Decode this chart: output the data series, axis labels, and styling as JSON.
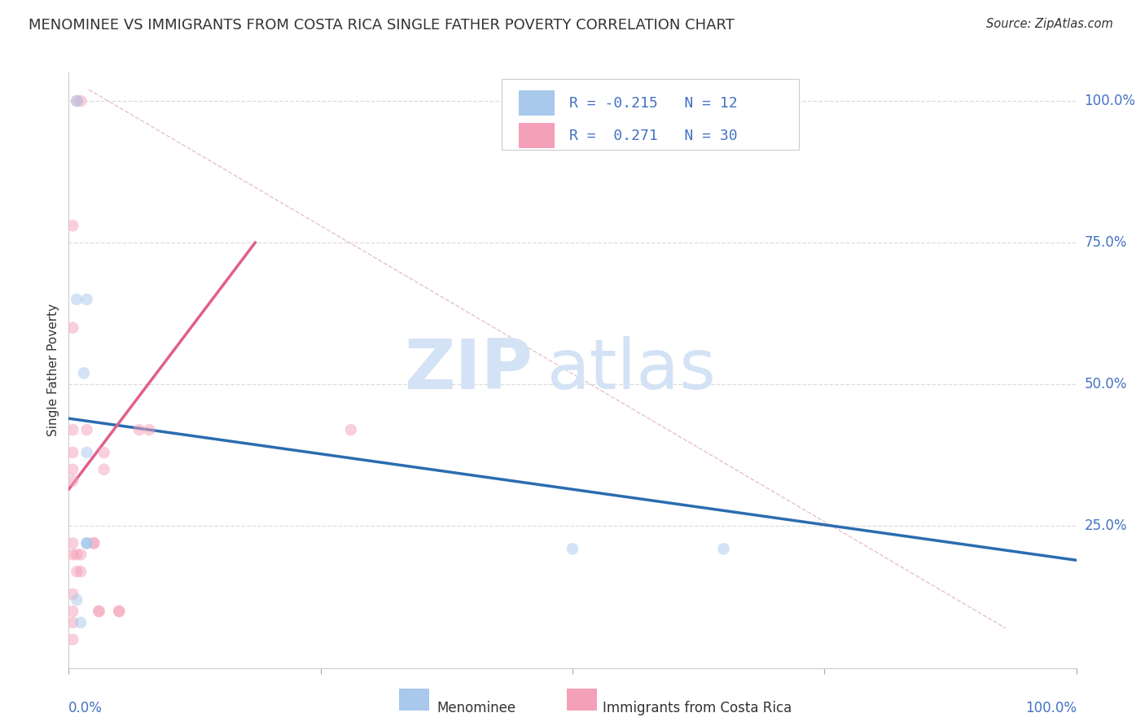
{
  "title": "MENOMINEE VS IMMIGRANTS FROM COSTA RICA SINGLE FATHER POVERTY CORRELATION CHART",
  "source": "Source: ZipAtlas.com",
  "ylabel": "Single Father Poverty",
  "ylabel_right_labels": [
    "100.0%",
    "75.0%",
    "50.0%",
    "25.0%"
  ],
  "ylabel_right_positions": [
    1.0,
    0.75,
    0.5,
    0.25
  ],
  "watermark_top": "ZIP",
  "watermark_bot": "atlas",
  "legend": {
    "blue_r": -0.215,
    "blue_n": 12,
    "pink_r": 0.271,
    "pink_n": 30
  },
  "blue_scatter_x": [
    0.008,
    0.018,
    0.008,
    0.015,
    0.018,
    0.018,
    0.018,
    0.5,
    0.65,
    0.018,
    0.008,
    0.012
  ],
  "blue_scatter_y": [
    1.0,
    0.65,
    0.65,
    0.52,
    0.38,
    0.22,
    0.22,
    0.21,
    0.21,
    0.22,
    0.12,
    0.08
  ],
  "pink_scatter_x": [
    0.008,
    0.012,
    0.004,
    0.004,
    0.004,
    0.004,
    0.004,
    0.004,
    0.004,
    0.004,
    0.008,
    0.008,
    0.012,
    0.012,
    0.018,
    0.025,
    0.025,
    0.03,
    0.03,
    0.035,
    0.035,
    0.05,
    0.05,
    0.07,
    0.08,
    0.28,
    0.004,
    0.004,
    0.004,
    0.004
  ],
  "pink_scatter_y": [
    1.0,
    1.0,
    0.78,
    0.6,
    0.42,
    0.38,
    0.35,
    0.33,
    0.22,
    0.2,
    0.2,
    0.17,
    0.2,
    0.17,
    0.42,
    0.22,
    0.22,
    0.1,
    0.1,
    0.38,
    0.35,
    0.1,
    0.1,
    0.42,
    0.42,
    0.42,
    0.13,
    0.1,
    0.08,
    0.05
  ],
  "blue_line_x": [
    0.0,
    1.0
  ],
  "blue_line_y": [
    0.44,
    0.19
  ],
  "pink_line_x": [
    0.0,
    0.185
  ],
  "pink_line_y": [
    0.315,
    0.75
  ],
  "ref_line_x": [
    0.02,
    0.93
  ],
  "ref_line_y": [
    1.02,
    0.07
  ],
  "blue_color": "#A8C8EC",
  "pink_color": "#F4A0B8",
  "blue_line_color": "#2B6CB0",
  "pink_line_color": "#E0608A",
  "ref_line_color": "#CCCCCC",
  "background_color": "#FFFFFF",
  "grid_color": "#DDDDDD",
  "title_color": "#333333",
  "axis_label_color": "#4472C4",
  "watermark_color": "#D4E2F5",
  "dot_size": 110,
  "dot_alpha": 0.5,
  "xlim": [
    0.0,
    1.0
  ],
  "ylim": [
    0.0,
    1.05
  ]
}
